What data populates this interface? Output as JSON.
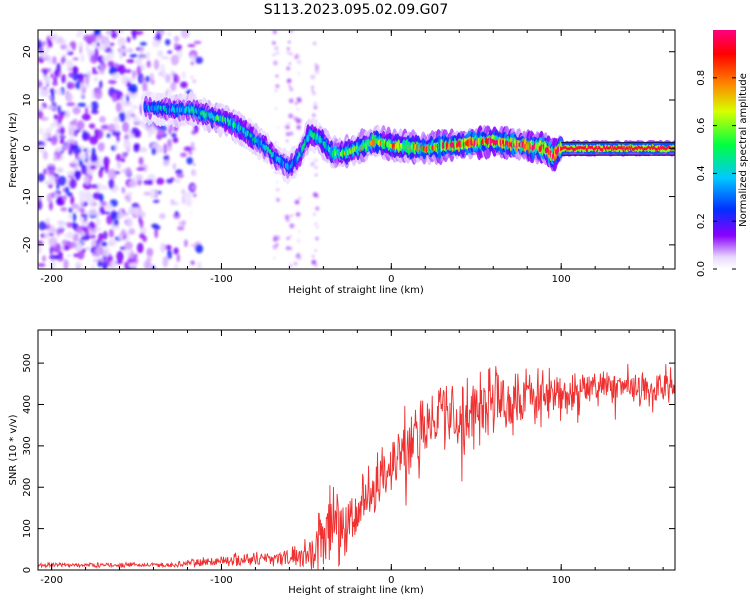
{
  "title": "S113.2023.095.02.09.G07",
  "chart_data": [
    {
      "type": "heatmap",
      "xlabel": "Height of straight line (km)",
      "ylabel": "Frequency (Hz)",
      "xlim": [
        -208,
        167
      ],
      "ylim": [
        -25,
        24.5
      ],
      "xticks": [
        -200,
        -100,
        0,
        100
      ],
      "yticks": [
        -20,
        -10,
        0,
        10,
        20
      ],
      "colorbar": {
        "label": "Normalized spectral amplitude",
        "range": [
          0,
          1
        ],
        "ticks": [
          "0.0",
          "0.2",
          "0.4",
          "0.6",
          "0.8"
        ],
        "colors": [
          "#ffffff",
          "#8a00ff",
          "#0030ff",
          "#00c8ff",
          "#00ff40",
          "#d8ff00",
          "#ff8000",
          "#ff0000",
          "#ff0080"
        ]
      },
      "ridge": [
        {
          "x": -145,
          "y": 8.5
        },
        {
          "x": -130,
          "y": 8
        },
        {
          "x": -118,
          "y": 8
        },
        {
          "x": -105,
          "y": 6.5
        },
        {
          "x": -95,
          "y": 5.5
        },
        {
          "x": -85,
          "y": 3
        },
        {
          "x": -75,
          "y": 0.5
        },
        {
          "x": -68,
          "y": -2
        },
        {
          "x": -60,
          "y": -4
        },
        {
          "x": -55,
          "y": -2
        },
        {
          "x": -48,
          "y": 3
        },
        {
          "x": -42,
          "y": 2
        },
        {
          "x": -35,
          "y": -1
        },
        {
          "x": -28,
          "y": -1
        },
        {
          "x": -20,
          "y": 0
        },
        {
          "x": -10,
          "y": 1.5
        },
        {
          "x": 0,
          "y": 0.5
        },
        {
          "x": 20,
          "y": 0
        },
        {
          "x": 58,
          "y": 1.5
        },
        {
          "x": 90,
          "y": 0
        },
        {
          "x": 95,
          "y": -1.5
        },
        {
          "x": 100,
          "y": 0
        },
        {
          "x": 167,
          "y": 0
        }
      ],
      "ridge_amplitude": [
        {
          "x": -145,
          "v": 0.3
        },
        {
          "x": -100,
          "v": 0.45
        },
        {
          "x": -60,
          "v": 0.3
        },
        {
          "x": -30,
          "v": 0.5
        },
        {
          "x": 0,
          "v": 0.65
        },
        {
          "x": 50,
          "v": 0.85
        },
        {
          "x": 100,
          "v": 0.95
        },
        {
          "x": 167,
          "v": 0.95
        }
      ]
    },
    {
      "type": "line",
      "xlabel": "Height of straight line (km)",
      "ylabel": "SNR (10 * v/v)",
      "xlim": [
        -208,
        167
      ],
      "ylim": [
        0,
        580
      ],
      "xticks": [
        -200,
        -100,
        0,
        100
      ],
      "yticks": [
        0,
        100,
        200,
        300,
        400,
        500
      ],
      "color": "#ee3030",
      "envelope": [
        {
          "x": -208,
          "base": 12,
          "noise": 6
        },
        {
          "x": -130,
          "base": 12,
          "noise": 6
        },
        {
          "x": -115,
          "base": 18,
          "noise": 12
        },
        {
          "x": -80,
          "base": 28,
          "noise": 20
        },
        {
          "x": -60,
          "base": 30,
          "noise": 22
        },
        {
          "x": -45,
          "base": 45,
          "noise": 50
        },
        {
          "x": -40,
          "base": 110,
          "noise": 120
        },
        {
          "x": -30,
          "base": 90,
          "noise": 90
        },
        {
          "x": -20,
          "base": 150,
          "noise": 70
        },
        {
          "x": -10,
          "base": 210,
          "noise": 80
        },
        {
          "x": 0,
          "base": 270,
          "noise": 85
        },
        {
          "x": 10,
          "base": 300,
          "noise": 90
        },
        {
          "x": 20,
          "base": 350,
          "noise": 90
        },
        {
          "x": 30,
          "base": 380,
          "noise": 90
        },
        {
          "x": 45,
          "base": 390,
          "noise": 95
        },
        {
          "x": 60,
          "base": 410,
          "noise": 90
        },
        {
          "x": 80,
          "base": 415,
          "noise": 60
        },
        {
          "x": 100,
          "base": 425,
          "noise": 50
        },
        {
          "x": 130,
          "base": 440,
          "noise": 45
        },
        {
          "x": 167,
          "base": 440,
          "noise": 40
        }
      ]
    }
  ]
}
